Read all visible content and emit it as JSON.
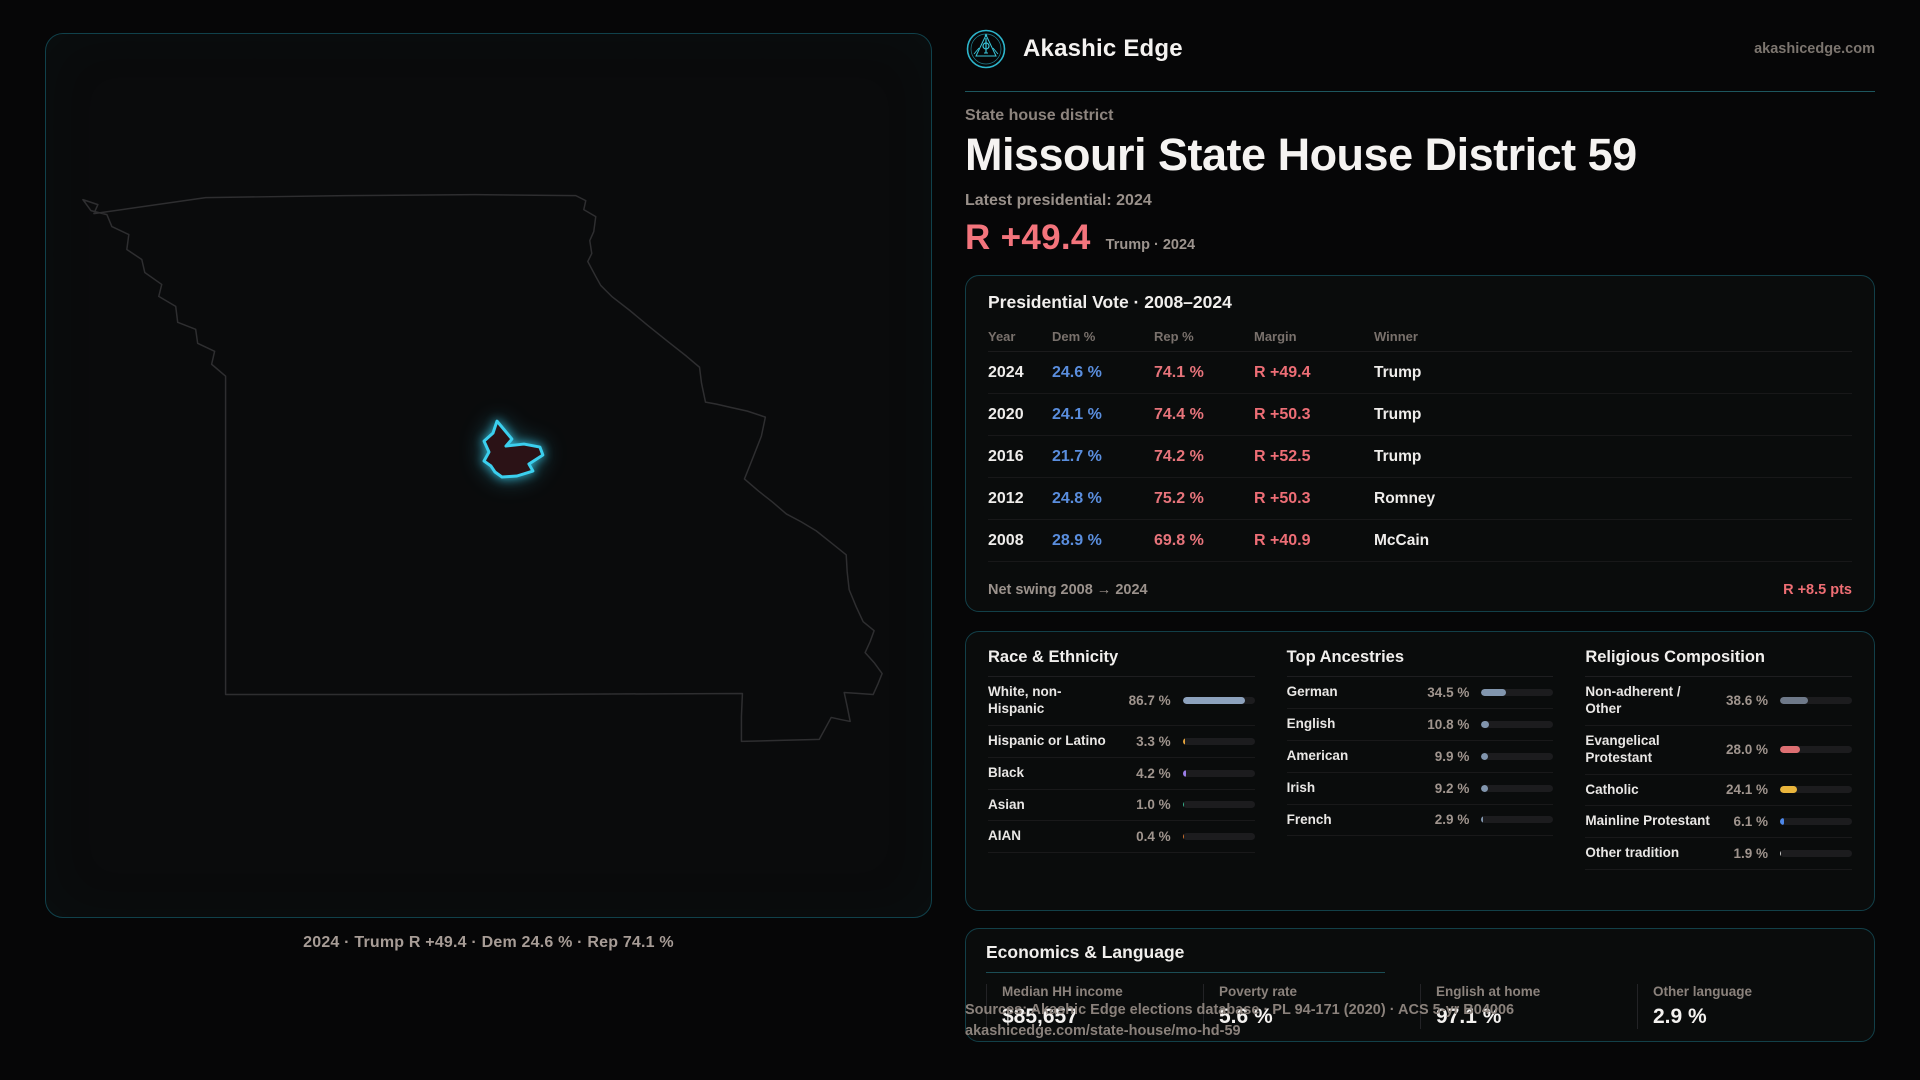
{
  "brand": {
    "name": "Akashic Edge",
    "domain": "akashicedge.com"
  },
  "header": {
    "eyebrow": "State house district",
    "title": "Missouri State House District 59",
    "subtitle": "Latest presidential: 2024",
    "margin_value": "R +49.4",
    "margin_context": "Trump · 2024"
  },
  "map": {
    "caption": "2024 · Trump R +49.4 · Dem 24.6 % · Rep 74.1 %",
    "district_stroke": "#3bcfee",
    "district_fill": "#2b1216",
    "state_outline": "#2e2e30"
  },
  "vote_table": {
    "title": "Presidential Vote · 2008–2024",
    "columns": {
      "year": "Year",
      "dem": "Dem %",
      "rep": "Rep %",
      "margin": "Margin",
      "winner": "Winner"
    },
    "rows": [
      {
        "year": "2024",
        "dem": "24.6 %",
        "rep": "74.1 %",
        "margin": "R +49.4",
        "winner": "Trump"
      },
      {
        "year": "2020",
        "dem": "24.1 %",
        "rep": "74.4 %",
        "margin": "R +50.3",
        "winner": "Trump"
      },
      {
        "year": "2016",
        "dem": "21.7 %",
        "rep": "74.2 %",
        "margin": "R +52.5",
        "winner": "Trump"
      },
      {
        "year": "2012",
        "dem": "24.8 %",
        "rep": "75.2 %",
        "margin": "R +50.3",
        "winner": "Romney"
      },
      {
        "year": "2008",
        "dem": "28.9 %",
        "rep": "69.8 %",
        "margin": "R +40.9",
        "winner": "McCain"
      }
    ],
    "net_swing_label": "Net swing 2008 → 2024",
    "net_swing_value": "R +8.5 pts"
  },
  "demographics": {
    "race": {
      "title": "Race & Ethnicity",
      "rows": [
        {
          "label": "White, non-Hispanic",
          "display": "86.7 %",
          "value": 86.7,
          "color": "#8da2bd"
        },
        {
          "label": "Hispanic or Latino",
          "display": "3.3 %",
          "value": 3.3,
          "color": "#e2a23c"
        },
        {
          "label": "Black",
          "display": "4.2 %",
          "value": 4.2,
          "color": "#9b7ee8"
        },
        {
          "label": "Asian",
          "display": "1.0 %",
          "value": 1.0,
          "color": "#35b08a"
        },
        {
          "label": "AIAN",
          "display": "0.4 %",
          "value": 0.4,
          "color": "#c96f2e"
        }
      ]
    },
    "ancestries": {
      "title": "Top Ancestries",
      "rows": [
        {
          "label": "German",
          "display": "34.5 %",
          "value": 34.5,
          "color": "#8195ad"
        },
        {
          "label": "English",
          "display": "10.8 %",
          "value": 10.8,
          "color": "#8195ad"
        },
        {
          "label": "American",
          "display": "9.9 %",
          "value": 9.9,
          "color": "#8195ad"
        },
        {
          "label": "Irish",
          "display": "9.2 %",
          "value": 9.2,
          "color": "#8195ad"
        },
        {
          "label": "French",
          "display": "2.9 %",
          "value": 2.9,
          "color": "#8195ad"
        }
      ]
    },
    "religion": {
      "title": "Religious Composition",
      "rows": [
        {
          "label": "Non-adherent / Other",
          "display": "38.6 %",
          "value": 38.6,
          "color": "#6e7989"
        },
        {
          "label": "Evangelical Protestant",
          "display": "28.0 %",
          "value": 28.0,
          "color": "#dd6f72"
        },
        {
          "label": "Catholic",
          "display": "24.1 %",
          "value": 24.1,
          "color": "#e9b53c"
        },
        {
          "label": "Mainline Protestant",
          "display": "6.1 %",
          "value": 6.1,
          "color": "#4d87e8"
        },
        {
          "label": "Other tradition",
          "display": "1.9 %",
          "value": 1.9,
          "color": "#c9c9c9"
        }
      ]
    }
  },
  "economics": {
    "title": "Economics & Language",
    "stats": [
      {
        "label": "Median HH income",
        "value": "$85,657"
      },
      {
        "label": "Poverty rate",
        "value": "5.6 %"
      },
      {
        "label": "English at home",
        "value": "97.1 %"
      },
      {
        "label": "Other language",
        "value": "2.9 %"
      }
    ]
  },
  "footer": {
    "line1": "Sources: Akashic Edge elections database · PL 94-171 (2020) · ACS 5-yr B04006",
    "line2": "akashicedge.com/state-house/mo-hd-59"
  },
  "colors": {
    "accent_teal": "#3bcfee",
    "dem_blue": "#5a8ede",
    "rep_red": "#e7747b",
    "margin_red": "#f3747c",
    "card_border": "#123f48"
  }
}
